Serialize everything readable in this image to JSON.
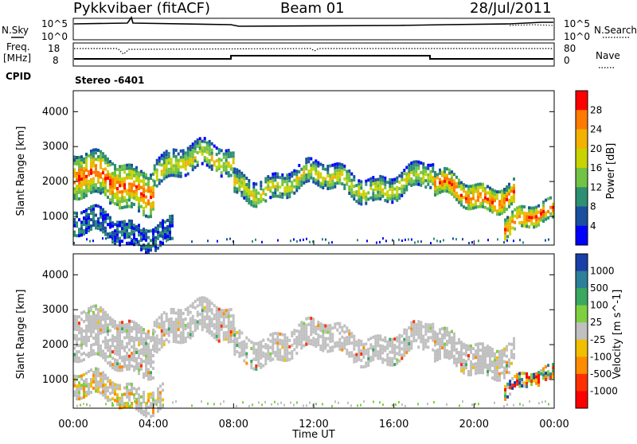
{
  "header": {
    "station": "Pykkvibaer (fitACF)",
    "beam": "Beam 01",
    "date": "28/Jul/2011"
  },
  "nsky_panel": {
    "left_label": "N.Sky",
    "right_label": "N.Search",
    "left_ticks": [
      "10^5",
      "10^0"
    ],
    "right_ticks": [
      "10^5",
      "10^0"
    ]
  },
  "freq_panel": {
    "left_label_1": "Freq.",
    "left_label_2": "[MHz]",
    "left_ticks": [
      "18",
      "8"
    ],
    "right_label": "Nave",
    "right_ticks": [
      "80",
      "0"
    ],
    "cpid_label": "CPID",
    "cpid_value": "Stereo -6401"
  },
  "chart_data": [
    {
      "type": "heatmap",
      "title": "",
      "ylabel": "Slant Range [km]",
      "quantity": "Power [dB]",
      "x_ticks": [
        "00:00",
        "04:00",
        "08:00",
        "12:00",
        "16:00",
        "20:00",
        "00:00"
      ],
      "y_ticks": [
        "4000",
        "3000",
        "2000",
        "1000"
      ],
      "ylim": [
        180,
        4600
      ],
      "xlim_hours": [
        0,
        24
      ],
      "colorbar": {
        "label": "Power [dB]",
        "ticks": [
          "28",
          "24",
          "20",
          "16",
          "12",
          "8",
          "4"
        ],
        "colors": [
          "#ff0000",
          "#ff7a00",
          "#f3b200",
          "#c8d400",
          "#72c244",
          "#2e8f72",
          "#1a4fa0",
          "#0000ff"
        ]
      },
      "bands": [
        {
          "t0": 0.0,
          "t1": 4.0,
          "r0": 1400,
          "r1": 2600,
          "level": "high"
        },
        {
          "t0": 4.0,
          "t1": 8.0,
          "r0": 2100,
          "r1": 2900,
          "level": "mid"
        },
        {
          "t0": 8.0,
          "t1": 18.0,
          "r0": 1650,
          "r1": 2350,
          "level": "mid"
        },
        {
          "t0": 18.0,
          "t1": 22.0,
          "r0": 1400,
          "r1": 2100,
          "level": "high"
        },
        {
          "t0": 0.0,
          "t1": 5.0,
          "r0": 300,
          "r1": 1000,
          "level": "low"
        },
        {
          "t0": 21.5,
          "t1": 24.0,
          "r0": 600,
          "r1": 1200,
          "level": "high"
        }
      ]
    },
    {
      "type": "heatmap",
      "title": "",
      "ylabel": "Slant Range [km]",
      "quantity": "Velocity [m s^-1]",
      "xlabel": "Time UT",
      "x_ticks": [
        "00:00",
        "04:00",
        "08:00",
        "12:00",
        "16:00",
        "20:00",
        "00:00"
      ],
      "y_ticks": [
        "4000",
        "3000",
        "2000",
        "1000"
      ],
      "ylim": [
        180,
        4600
      ],
      "xlim_hours": [
        0,
        24
      ],
      "colorbar": {
        "label": "Velocity [m s^-1]",
        "ticks": [
          "1000",
          "500",
          "100",
          "25",
          "-25",
          "-100",
          "-500",
          "-1000"
        ],
        "colors": [
          "#1a3fa8",
          "#2e7f9a",
          "#3aa860",
          "#7fd040",
          "#c0c0c0",
          "#f0c000",
          "#ff8c00",
          "#ff3000",
          "#ff0000"
        ]
      },
      "bands": [
        {
          "t0": 0.0,
          "t1": 4.0,
          "r0": 1400,
          "r1": 2800,
          "level": "grey"
        },
        {
          "t0": 4.0,
          "t1": 8.0,
          "r0": 2000,
          "r1": 3000,
          "level": "grey"
        },
        {
          "t0": 8.0,
          "t1": 18.0,
          "r0": 1650,
          "r1": 2450,
          "level": "grey"
        },
        {
          "t0": 18.0,
          "t1": 22.0,
          "r0": 1300,
          "r1": 2200,
          "level": "grey"
        },
        {
          "t0": 0.0,
          "t1": 4.5,
          "r0": 300,
          "r1": 1000,
          "level": "orange"
        },
        {
          "t0": 21.5,
          "t1": 24.0,
          "r0": 700,
          "r1": 1100,
          "level": "mixed"
        }
      ]
    }
  ]
}
